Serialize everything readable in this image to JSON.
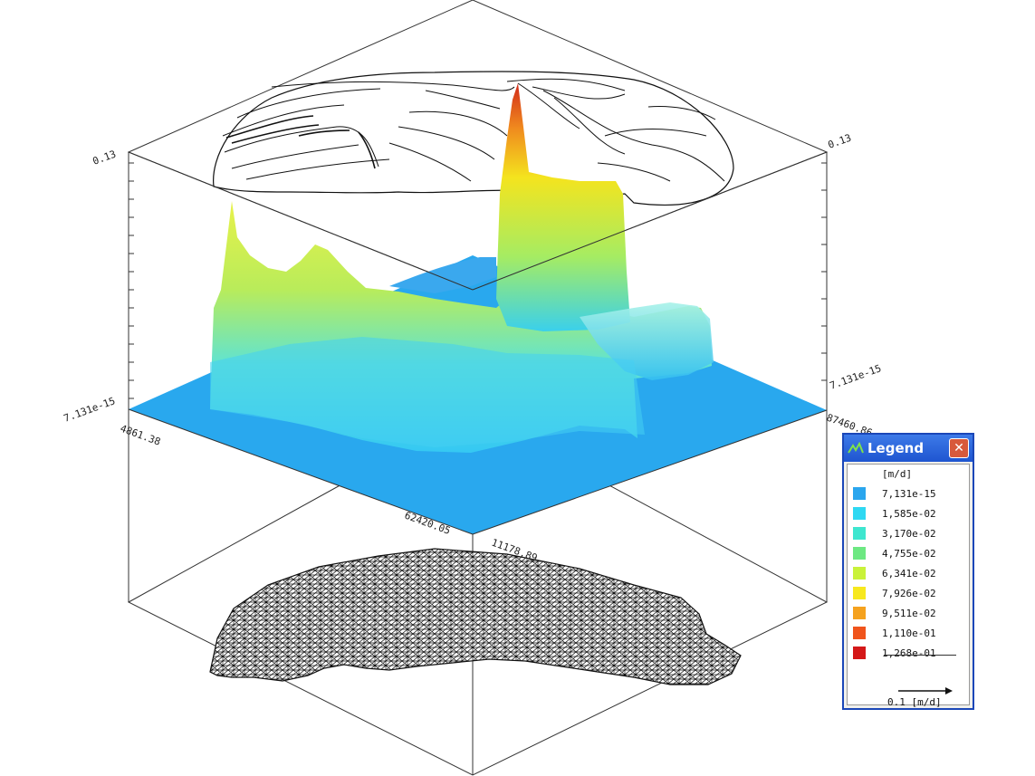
{
  "axis_labels": {
    "z_max_left": "0.13",
    "z_max_right": "0.13",
    "z_min_left": "7.131e-15",
    "z_min_right": "7.131e-15",
    "x_left": "4861.38",
    "x_front": "62420.05",
    "y_front": "11178.89",
    "y_right": "87460.86"
  },
  "legend": {
    "title": "Legend",
    "close_glyph": "✕",
    "unit": "[m/d]",
    "items": [
      {
        "label": "7,131e-15",
        "color": "#2aa6ee"
      },
      {
        "label": "1,585e-02",
        "color": "#2ed8f2"
      },
      {
        "label": "3,170e-02",
        "color": "#3ee6cf"
      },
      {
        "label": "4,755e-02",
        "color": "#6de882"
      },
      {
        "label": "6,341e-02",
        "color": "#c9f23a"
      },
      {
        "label": "7,926e-02",
        "color": "#f7e81e"
      },
      {
        "label": "9,511e-02",
        "color": "#f5a21e"
      },
      {
        "label": "1,110e-01",
        "color": "#f0541c"
      },
      {
        "label": "1,268e-01",
        "color": "#d41818"
      }
    ],
    "scale_label": "0.1 [m/d]"
  },
  "colors": {
    "surface_base": "#29a8ee",
    "titlebar": "#2a5fd6",
    "close_button": "#d8593b"
  }
}
